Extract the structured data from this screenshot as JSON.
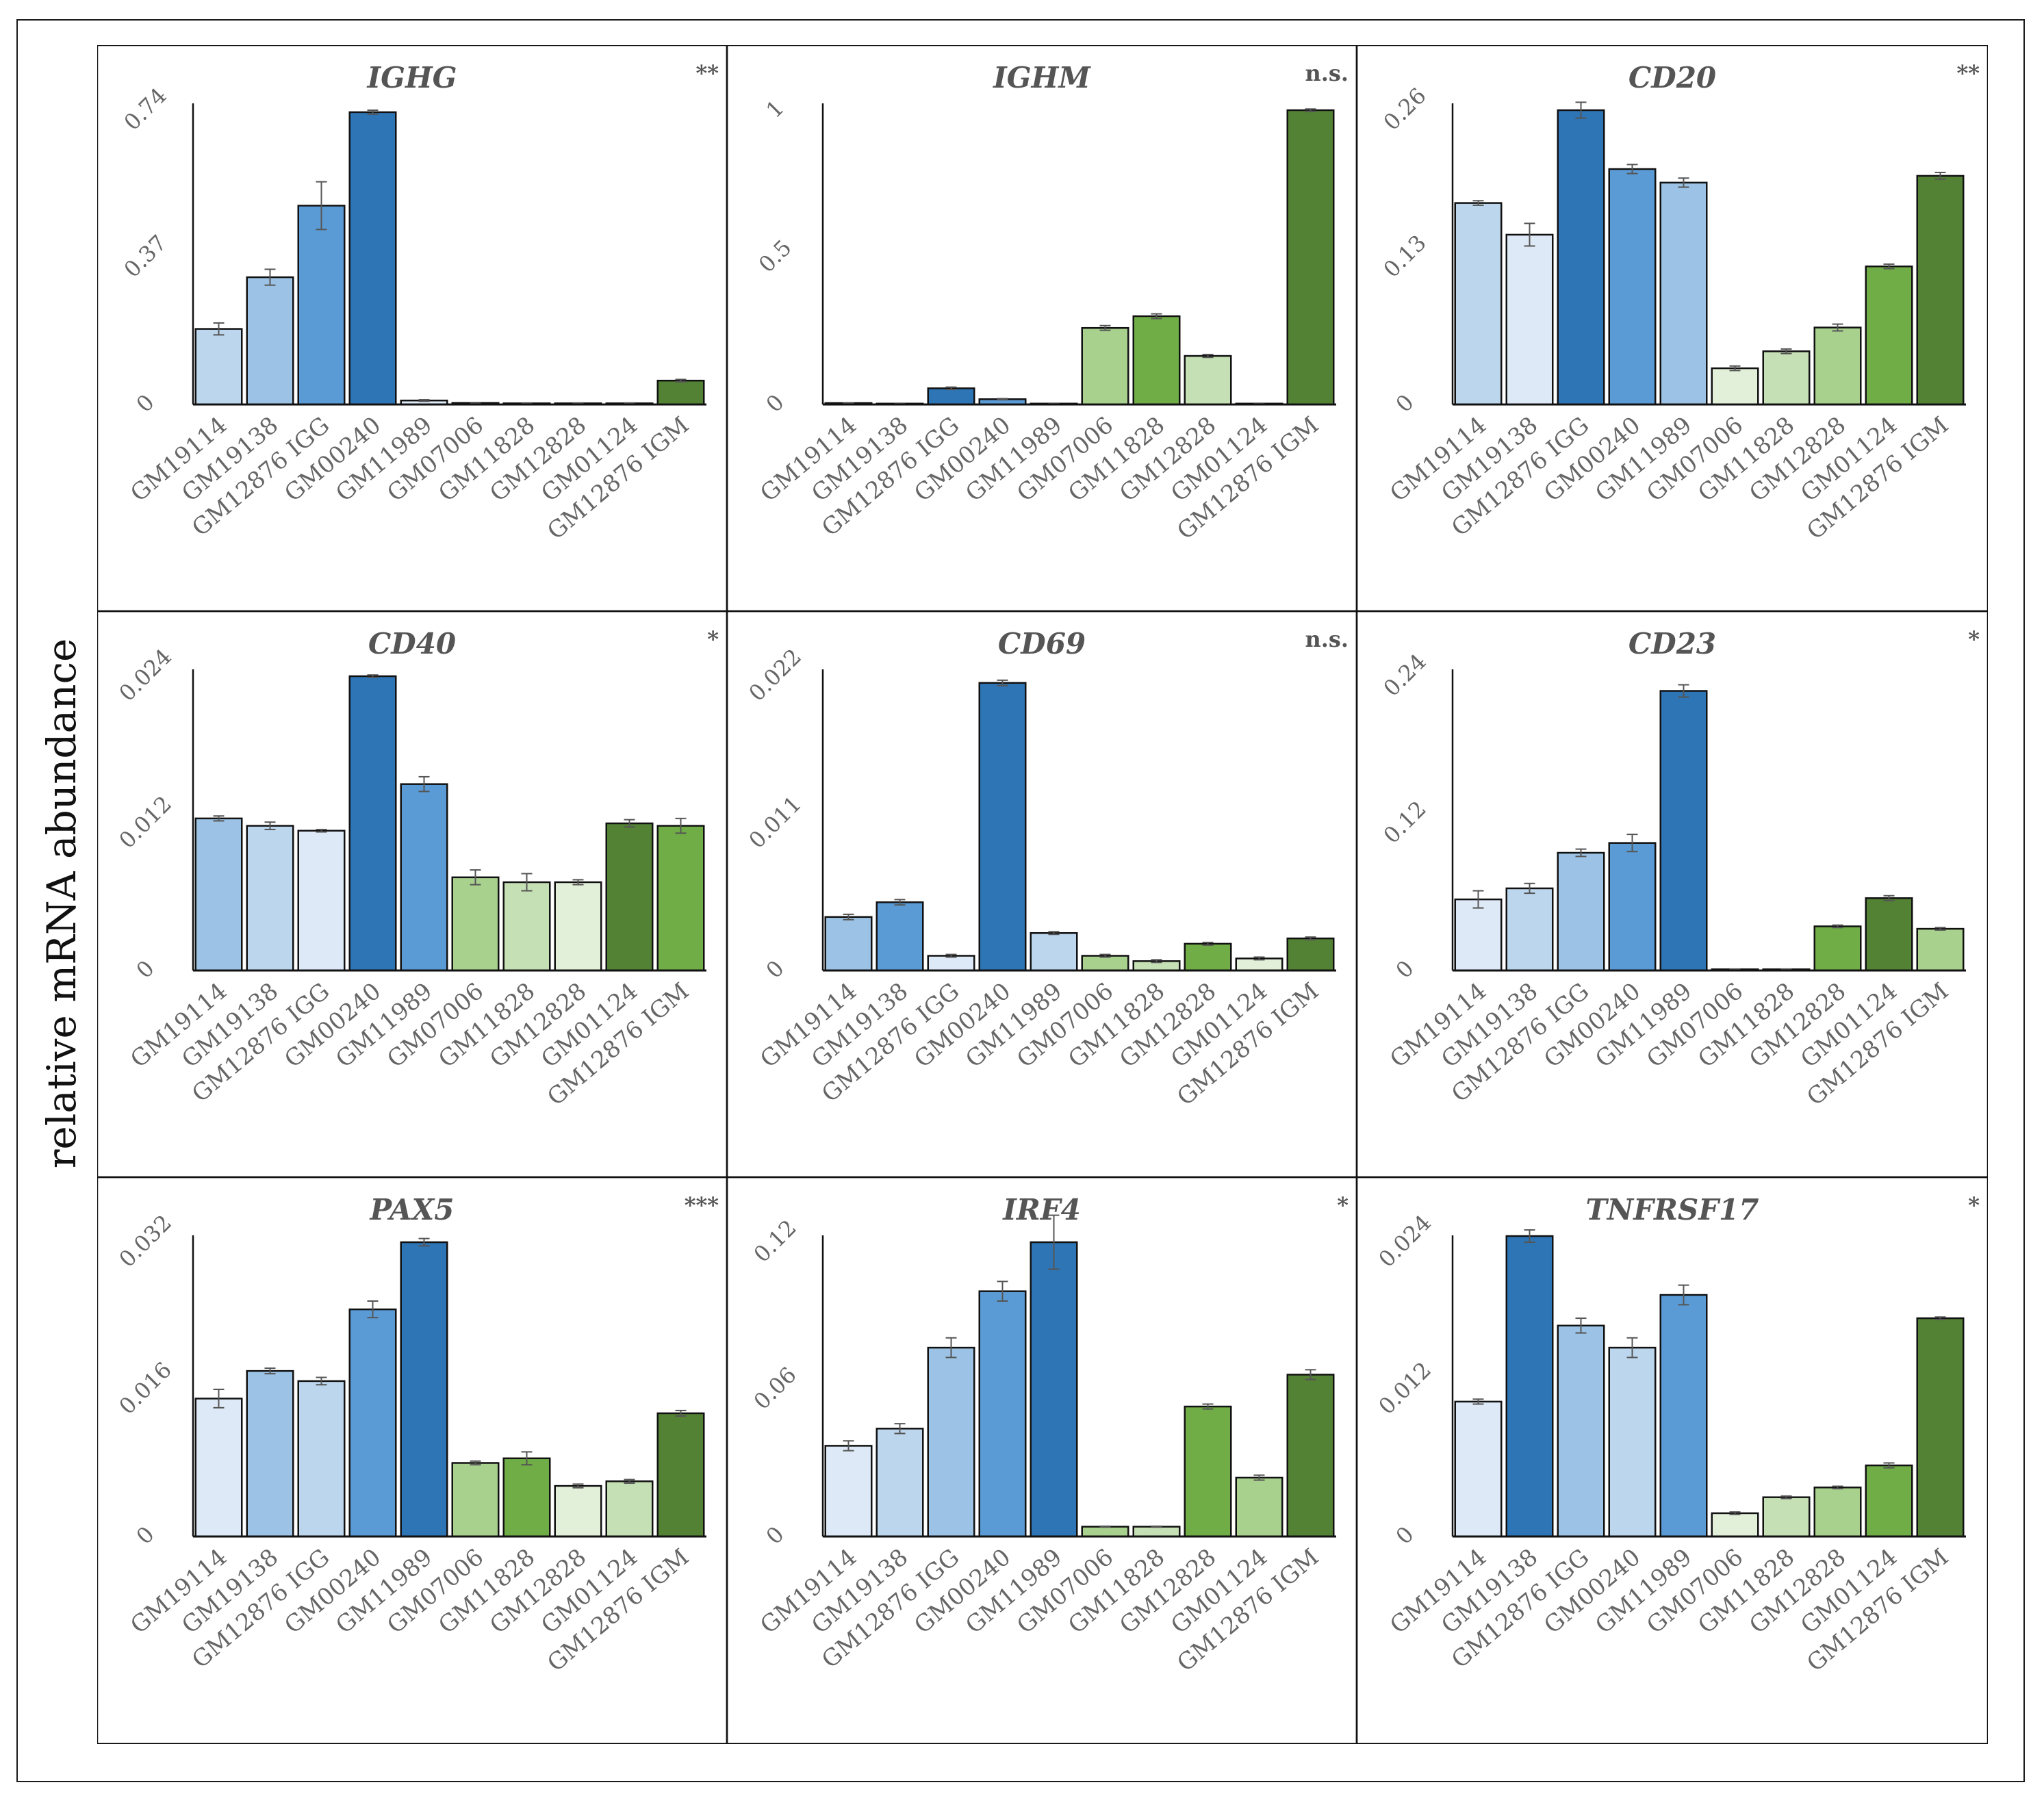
{
  "figure": {
    "y_axis_label": "relative mRNA abundance"
  },
  "colors": {
    "blue_1": "#dde9f6",
    "blue_2": "#bcd6ee",
    "blue_3": "#9cc3e6",
    "blue_4": "#5b9bd5",
    "blue_5": "#2e75b6",
    "green_1": "#e2efd9",
    "green_2": "#c5e0b4",
    "green_3": "#a9d18e",
    "green_4": "#70ad47",
    "green_5": "#548235",
    "axis": "#111111",
    "title_text": "#555555",
    "tick_text": "#666666",
    "error_bar": "#555555"
  },
  "chart_data": [
    {
      "type": "bar",
      "title": "IGHG",
      "significance": "**",
      "categories": [
        "GM19114",
        "GM19138",
        "GM12876 IGG",
        "GM00240",
        "GM11989",
        "GM07006",
        "GM11828",
        "GM12828",
        "GM01124",
        "GM12876 IGM"
      ],
      "values": [
        0.19,
        0.32,
        0.5,
        0.735,
        0.01,
        0.004,
        0.003,
        0.003,
        0.003,
        0.06
      ],
      "errors": [
        0.015,
        0.02,
        0.06,
        0.005,
        0.002,
        0.001,
        0.001,
        0.001,
        0.001,
        0.003
      ],
      "colors": [
        "blue_2",
        "blue_3",
        "blue_4",
        "blue_5",
        "blue_1",
        "blue_1",
        "blue_1",
        "blue_1",
        "blue_1",
        "green_5"
      ],
      "yticks": [
        0,
        0.37,
        0.74
      ],
      "ytick_labels": [
        "0",
        "0.37",
        "0.74"
      ],
      "ylim": [
        0,
        0.74
      ],
      "xlabel": "",
      "ylabel": ""
    },
    {
      "type": "bar",
      "title": "IGHM",
      "significance": "n.s.",
      "categories": [
        "GM19114",
        "GM19138",
        "GM12876 IGG",
        "GM00240",
        "GM11989",
        "GM07006",
        "GM11828",
        "GM12828",
        "GM01124",
        "GM12876 IGM"
      ],
      "values": [
        0.005,
        0.003,
        0.055,
        0.018,
        0.003,
        0.26,
        0.3,
        0.165,
        0.003,
        1.0
      ],
      "errors": [
        0.001,
        0.001,
        0.004,
        0.002,
        0.001,
        0.008,
        0.008,
        0.005,
        0.001,
        0.004
      ],
      "colors": [
        "blue_2",
        "blue_2",
        "blue_5",
        "blue_4",
        "blue_2",
        "green_3",
        "green_4",
        "green_2",
        "green_1",
        "green_5"
      ],
      "yticks": [
        0,
        0.5,
        1
      ],
      "ytick_labels": [
        "0",
        "0.5",
        "1"
      ],
      "ylim": [
        0,
        1
      ],
      "xlabel": "",
      "ylabel": ""
    },
    {
      "type": "bar",
      "title": "CD20",
      "significance": "**",
      "categories": [
        "GM19114",
        "GM19138",
        "GM12876 IGG",
        "GM00240",
        "GM11989",
        "GM07006",
        "GM11828",
        "GM12828",
        "GM01124",
        "GM12876 IGM"
      ],
      "values": [
        0.178,
        0.15,
        0.26,
        0.208,
        0.196,
        0.032,
        0.047,
        0.068,
        0.122,
        0.202
      ],
      "errors": [
        0.002,
        0.01,
        0.007,
        0.004,
        0.004,
        0.002,
        0.002,
        0.003,
        0.002,
        0.003
      ],
      "colors": [
        "blue_2",
        "blue_1",
        "blue_5",
        "blue_4",
        "blue_3",
        "green_1",
        "green_2",
        "green_3",
        "green_4",
        "green_5"
      ],
      "yticks": [
        0,
        0.13,
        0.26
      ],
      "ytick_labels": [
        "0",
        "0.13",
        "0.26"
      ],
      "ylim": [
        0,
        0.26
      ],
      "xlabel": "",
      "ylabel": ""
    },
    {
      "type": "bar",
      "title": "CD40",
      "significance": "*",
      "categories": [
        "GM19114",
        "GM19138",
        "GM12876 IGG",
        "GM00240",
        "GM11989",
        "GM07006",
        "GM11828",
        "GM12828",
        "GM01124",
        "GM12876 IGM"
      ],
      "values": [
        0.0124,
        0.0118,
        0.0114,
        0.024,
        0.0152,
        0.0076,
        0.0072,
        0.0072,
        0.012,
        0.0118
      ],
      "errors": [
        0.0002,
        0.0003,
        0.0001,
        0.0001,
        0.0006,
        0.0006,
        0.0007,
        0.0002,
        0.0003,
        0.0006
      ],
      "colors": [
        "blue_3",
        "blue_2",
        "blue_1",
        "blue_5",
        "blue_4",
        "green_3",
        "green_2",
        "green_1",
        "green_5",
        "green_4"
      ],
      "yticks": [
        0,
        0.012,
        0.024
      ],
      "ytick_labels": [
        "0",
        "0.012",
        "0.024"
      ],
      "ylim": [
        0,
        0.024
      ],
      "xlabel": "",
      "ylabel": ""
    },
    {
      "type": "bar",
      "title": "CD69",
      "significance": "n.s.",
      "categories": [
        "GM19114",
        "GM19138",
        "GM12876 IGG",
        "GM00240",
        "GM11989",
        "GM07006",
        "GM11828",
        "GM12828",
        "GM01124",
        "GM12876 IGM"
      ],
      "values": [
        0.004,
        0.0051,
        0.0011,
        0.0215,
        0.0028,
        0.0011,
        0.0007,
        0.002,
        0.0009,
        0.0024
      ],
      "errors": [
        0.0002,
        0.0002,
        0.0001,
        0.0002,
        0.0001,
        0.0001,
        0.0001,
        0.0001,
        0.0001,
        0.0001
      ],
      "colors": [
        "blue_3",
        "blue_4",
        "blue_1",
        "blue_5",
        "blue_2",
        "green_3",
        "green_2",
        "green_4",
        "green_1",
        "green_5"
      ],
      "yticks": [
        0,
        0.011,
        0.022
      ],
      "ytick_labels": [
        "0",
        "0.011",
        "0.022"
      ],
      "ylim": [
        0,
        0.022
      ],
      "xlabel": "",
      "ylabel": ""
    },
    {
      "type": "bar",
      "title": "CD23",
      "significance": "*",
      "categories": [
        "GM19114",
        "GM19138",
        "GM12876 IGG",
        "GM00240",
        "GM11989",
        "GM07006",
        "GM11828",
        "GM12828",
        "GM01124",
        "GM12876 IGM"
      ],
      "values": [
        0.058,
        0.067,
        0.096,
        0.104,
        0.228,
        0.001,
        0.001,
        0.036,
        0.059,
        0.034
      ],
      "errors": [
        0.007,
        0.004,
        0.003,
        0.007,
        0.005,
        0.0002,
        0.0002,
        0.001,
        0.002,
        0.001
      ],
      "colors": [
        "blue_1",
        "blue_2",
        "blue_3",
        "blue_4",
        "blue_5",
        "green_1",
        "green_1",
        "green_4",
        "green_5",
        "green_3"
      ],
      "yticks": [
        0,
        0.12,
        0.24
      ],
      "ytick_labels": [
        "0",
        "0.12",
        "0.24"
      ],
      "ylim": [
        0,
        0.24
      ],
      "xlabel": "",
      "ylabel": ""
    },
    {
      "type": "bar",
      "title": "PAX5",
      "significance": "***",
      "categories": [
        "GM19114",
        "GM19138",
        "GM12876 IGG",
        "GM00240",
        "GM11989",
        "GM07006",
        "GM11828",
        "GM12828",
        "GM01124",
        "GM12876 IGM"
      ],
      "values": [
        0.015,
        0.018,
        0.0169,
        0.0247,
        0.032,
        0.008,
        0.0085,
        0.0055,
        0.006,
        0.0134
      ],
      "errors": [
        0.001,
        0.0003,
        0.0004,
        0.0009,
        0.0004,
        0.0002,
        0.0007,
        0.0002,
        0.0002,
        0.0003
      ],
      "colors": [
        "blue_1",
        "blue_3",
        "blue_2",
        "blue_4",
        "blue_5",
        "green_3",
        "green_4",
        "green_1",
        "green_2",
        "green_5"
      ],
      "yticks": [
        0,
        0.016,
        0.032
      ],
      "ytick_labels": [
        "0",
        "0.016",
        "0.032"
      ],
      "ylim": [
        0,
        0.032
      ],
      "xlabel": "",
      "ylabel": ""
    },
    {
      "type": "bar",
      "title": "IRF4",
      "significance": "*",
      "categories": [
        "GM19114",
        "GM19138",
        "GM12876 IGG",
        "GM00240",
        "GM11989",
        "GM07006",
        "GM11828",
        "GM12828",
        "GM01124",
        "GM12876 IGM"
      ],
      "values": [
        0.037,
        0.044,
        0.077,
        0.1,
        0.12,
        0.004,
        0.004,
        0.053,
        0.024,
        0.066
      ],
      "errors": [
        0.002,
        0.002,
        0.004,
        0.004,
        0.011,
        0.0002,
        0.0002,
        0.001,
        0.001,
        0.002
      ],
      "colors": [
        "blue_1",
        "blue_2",
        "blue_3",
        "blue_4",
        "blue_5",
        "green_3",
        "green_2",
        "green_4",
        "green_3",
        "green_5"
      ],
      "yticks": [
        0,
        0.06,
        0.12
      ],
      "ytick_labels": [
        "0",
        "0.06",
        "0.12"
      ],
      "ylim": [
        0,
        0.12
      ],
      "xlabel": "",
      "ylabel": ""
    },
    {
      "type": "bar",
      "title": "TNFRSF17",
      "significance": "*",
      "categories": [
        "GM19114",
        "GM19138",
        "GM12876 IGG",
        "GM00240",
        "GM11989",
        "GM07006",
        "GM11828",
        "GM12828",
        "GM01124",
        "GM12876 IGM"
      ],
      "values": [
        0.011,
        0.0245,
        0.0172,
        0.0154,
        0.0197,
        0.0019,
        0.0032,
        0.004,
        0.0058,
        0.0178
      ],
      "errors": [
        0.0002,
        0.0005,
        0.0006,
        0.0008,
        0.0008,
        0.0001,
        0.0001,
        0.0001,
        0.0002,
        0.0001
      ],
      "colors": [
        "blue_1",
        "blue_5",
        "blue_3",
        "blue_2",
        "blue_4",
        "green_1",
        "green_2",
        "green_3",
        "green_4",
        "green_5"
      ],
      "yticks": [
        0,
        0.012,
        0.024
      ],
      "ytick_labels": [
        "0",
        "0.012",
        "0.024"
      ],
      "ylim": [
        0,
        0.024
      ],
      "xlabel": "",
      "ylabel": ""
    }
  ]
}
